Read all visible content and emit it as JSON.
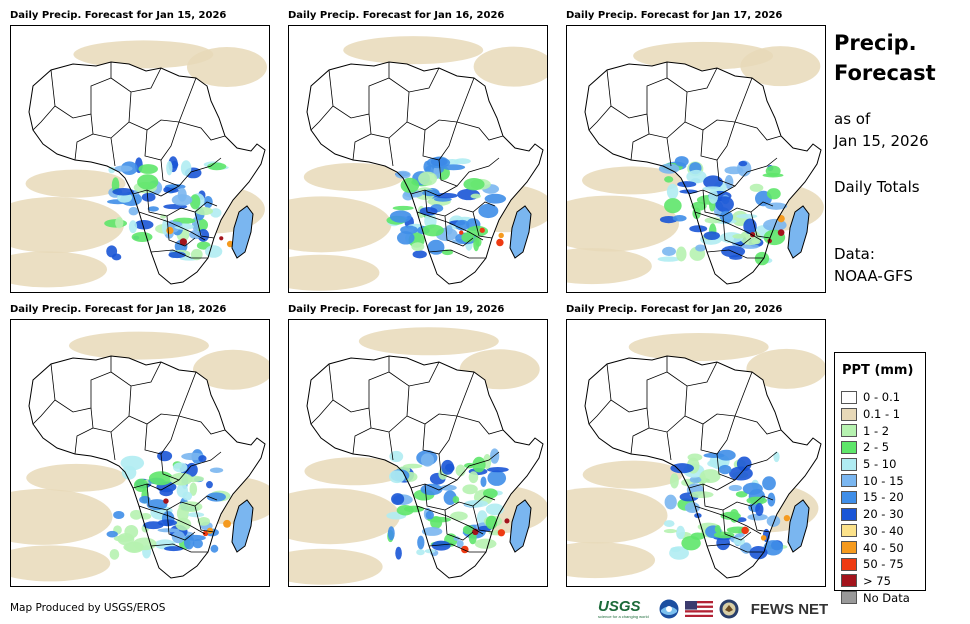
{
  "panels": [
    {
      "title": "Daily Precip. Forecast for Jan 15, 2026"
    },
    {
      "title": "Daily Precip. Forecast for Jan 16, 2026"
    },
    {
      "title": "Daily Precip. Forecast for Jan 17, 2026"
    },
    {
      "title": "Daily Precip. Forecast for Jan 18, 2026"
    },
    {
      "title": "Daily Precip. Forecast for Jan 19, 2026"
    },
    {
      "title": "Daily Precip. Forecast for Jan 20, 2026"
    }
  ],
  "side": {
    "title_line1": "Precip.",
    "title_line2": "Forecast",
    "as_of_line1": "as of",
    "as_of_line2": "Jan 15, 2026",
    "daily_totals": "Daily Totals",
    "data_line1": "Data:",
    "data_line2": "NOAA-GFS"
  },
  "legend": {
    "title": "PPT (mm)",
    "items": [
      {
        "label": "0 - 0.1",
        "color": "#ffffff"
      },
      {
        "label": "0.1 - 1",
        "color": "#e8d9b8"
      },
      {
        "label": "1 - 2",
        "color": "#b6f2b0"
      },
      {
        "label": "2 - 5",
        "color": "#5ee66a"
      },
      {
        "label": "5 - 10",
        "color": "#b0ecf2"
      },
      {
        "label": "10 - 15",
        "color": "#7ab6f0"
      },
      {
        "label": "15 - 20",
        "color": "#3f8ee8"
      },
      {
        "label": "20 - 30",
        "color": "#1a55d6"
      },
      {
        "label": "30 - 40",
        "color": "#fce28a"
      },
      {
        "label": "40 - 50",
        "color": "#f59a1e"
      },
      {
        "label": "50 - 75",
        "color": "#ee3a12"
      },
      {
        "label": "> 75",
        "color": "#a3141c"
      },
      {
        "label": "No Data",
        "color": "#999999"
      }
    ]
  },
  "footer": {
    "credit": "Map Produced by USGS/EROS",
    "usgs": "USGS",
    "usgs_tagline": "science for a changing world",
    "fews": "FEWS NET"
  }
}
